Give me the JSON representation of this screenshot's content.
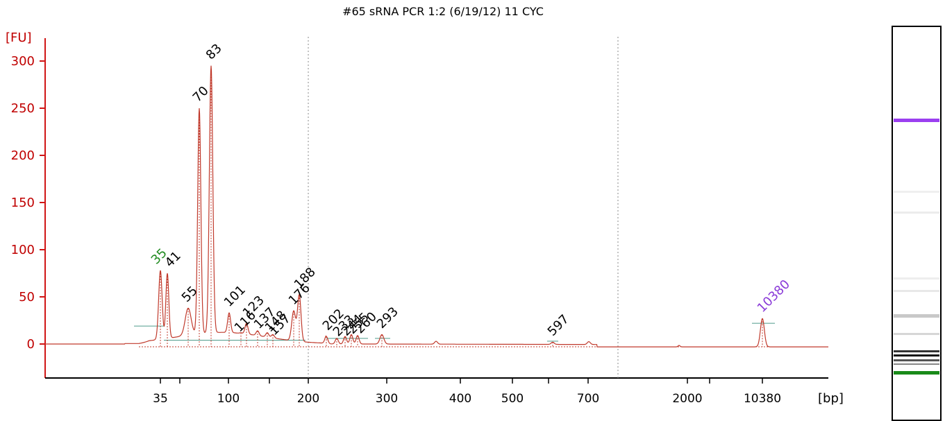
{
  "chart_data": {
    "type": "line",
    "title": "#65 sRNA PCR 1:2 (6/19/12) 11 CYC",
    "y_unit": "[FU]",
    "x_unit": "[bp]",
    "ylim": [
      -30,
      320
    ],
    "y_ticks": [
      0,
      50,
      100,
      150,
      200,
      250,
      300
    ],
    "x_ticks": [
      "35",
      "100",
      "200",
      "300",
      "400",
      "500",
      "700",
      "2000",
      "10380"
    ],
    "grid": false,
    "peaks": [
      {
        "label": "35",
        "fu": 78,
        "color": "#1f8a1f"
      },
      {
        "label": "41",
        "fu": 75,
        "color": "#000000"
      },
      {
        "label": "55",
        "fu": 38,
        "color": "#000000"
      },
      {
        "label": "70",
        "fu": 250,
        "color": "#000000"
      },
      {
        "label": "83",
        "fu": 295,
        "color": "#000000"
      },
      {
        "label": "101",
        "fu": 33,
        "color": "#000000"
      },
      {
        "label": "116",
        "fu": 12,
        "color": "#000000"
      },
      {
        "label": "123",
        "fu": 22,
        "color": "#000000"
      },
      {
        "label": "137",
        "fu": 14,
        "color": "#000000"
      },
      {
        "label": "148",
        "fu": 12,
        "color": "#000000"
      },
      {
        "label": "157",
        "fu": 10,
        "color": "#000000"
      },
      {
        "label": "176",
        "fu": 35,
        "color": "#000000"
      },
      {
        "label": "188",
        "fu": 52,
        "color": "#000000"
      },
      {
        "label": "202",
        "fu": 8,
        "color": "#000000"
      },
      {
        "label": "233",
        "fu": 6,
        "color": "#000000"
      },
      {
        "label": "244",
        "fu": 8,
        "color": "#000000"
      },
      {
        "label": "255",
        "fu": 10,
        "color": "#000000"
      },
      {
        "label": "260",
        "fu": 9,
        "color": "#000000"
      },
      {
        "label": "293",
        "fu": 10,
        "color": "#000000"
      },
      {
        "label": "597",
        "fu": 2,
        "color": "#000000"
      },
      {
        "label": "10380",
        "fu": 27,
        "color": "#8a3ad8"
      }
    ]
  },
  "colors": {
    "trace": "#c0392b",
    "axis": "#d01515",
    "baseline_marker": "#4e9a8a",
    "lower_marker_band": "#1a8a1a",
    "upper_marker_band": "#9b3ff0"
  }
}
